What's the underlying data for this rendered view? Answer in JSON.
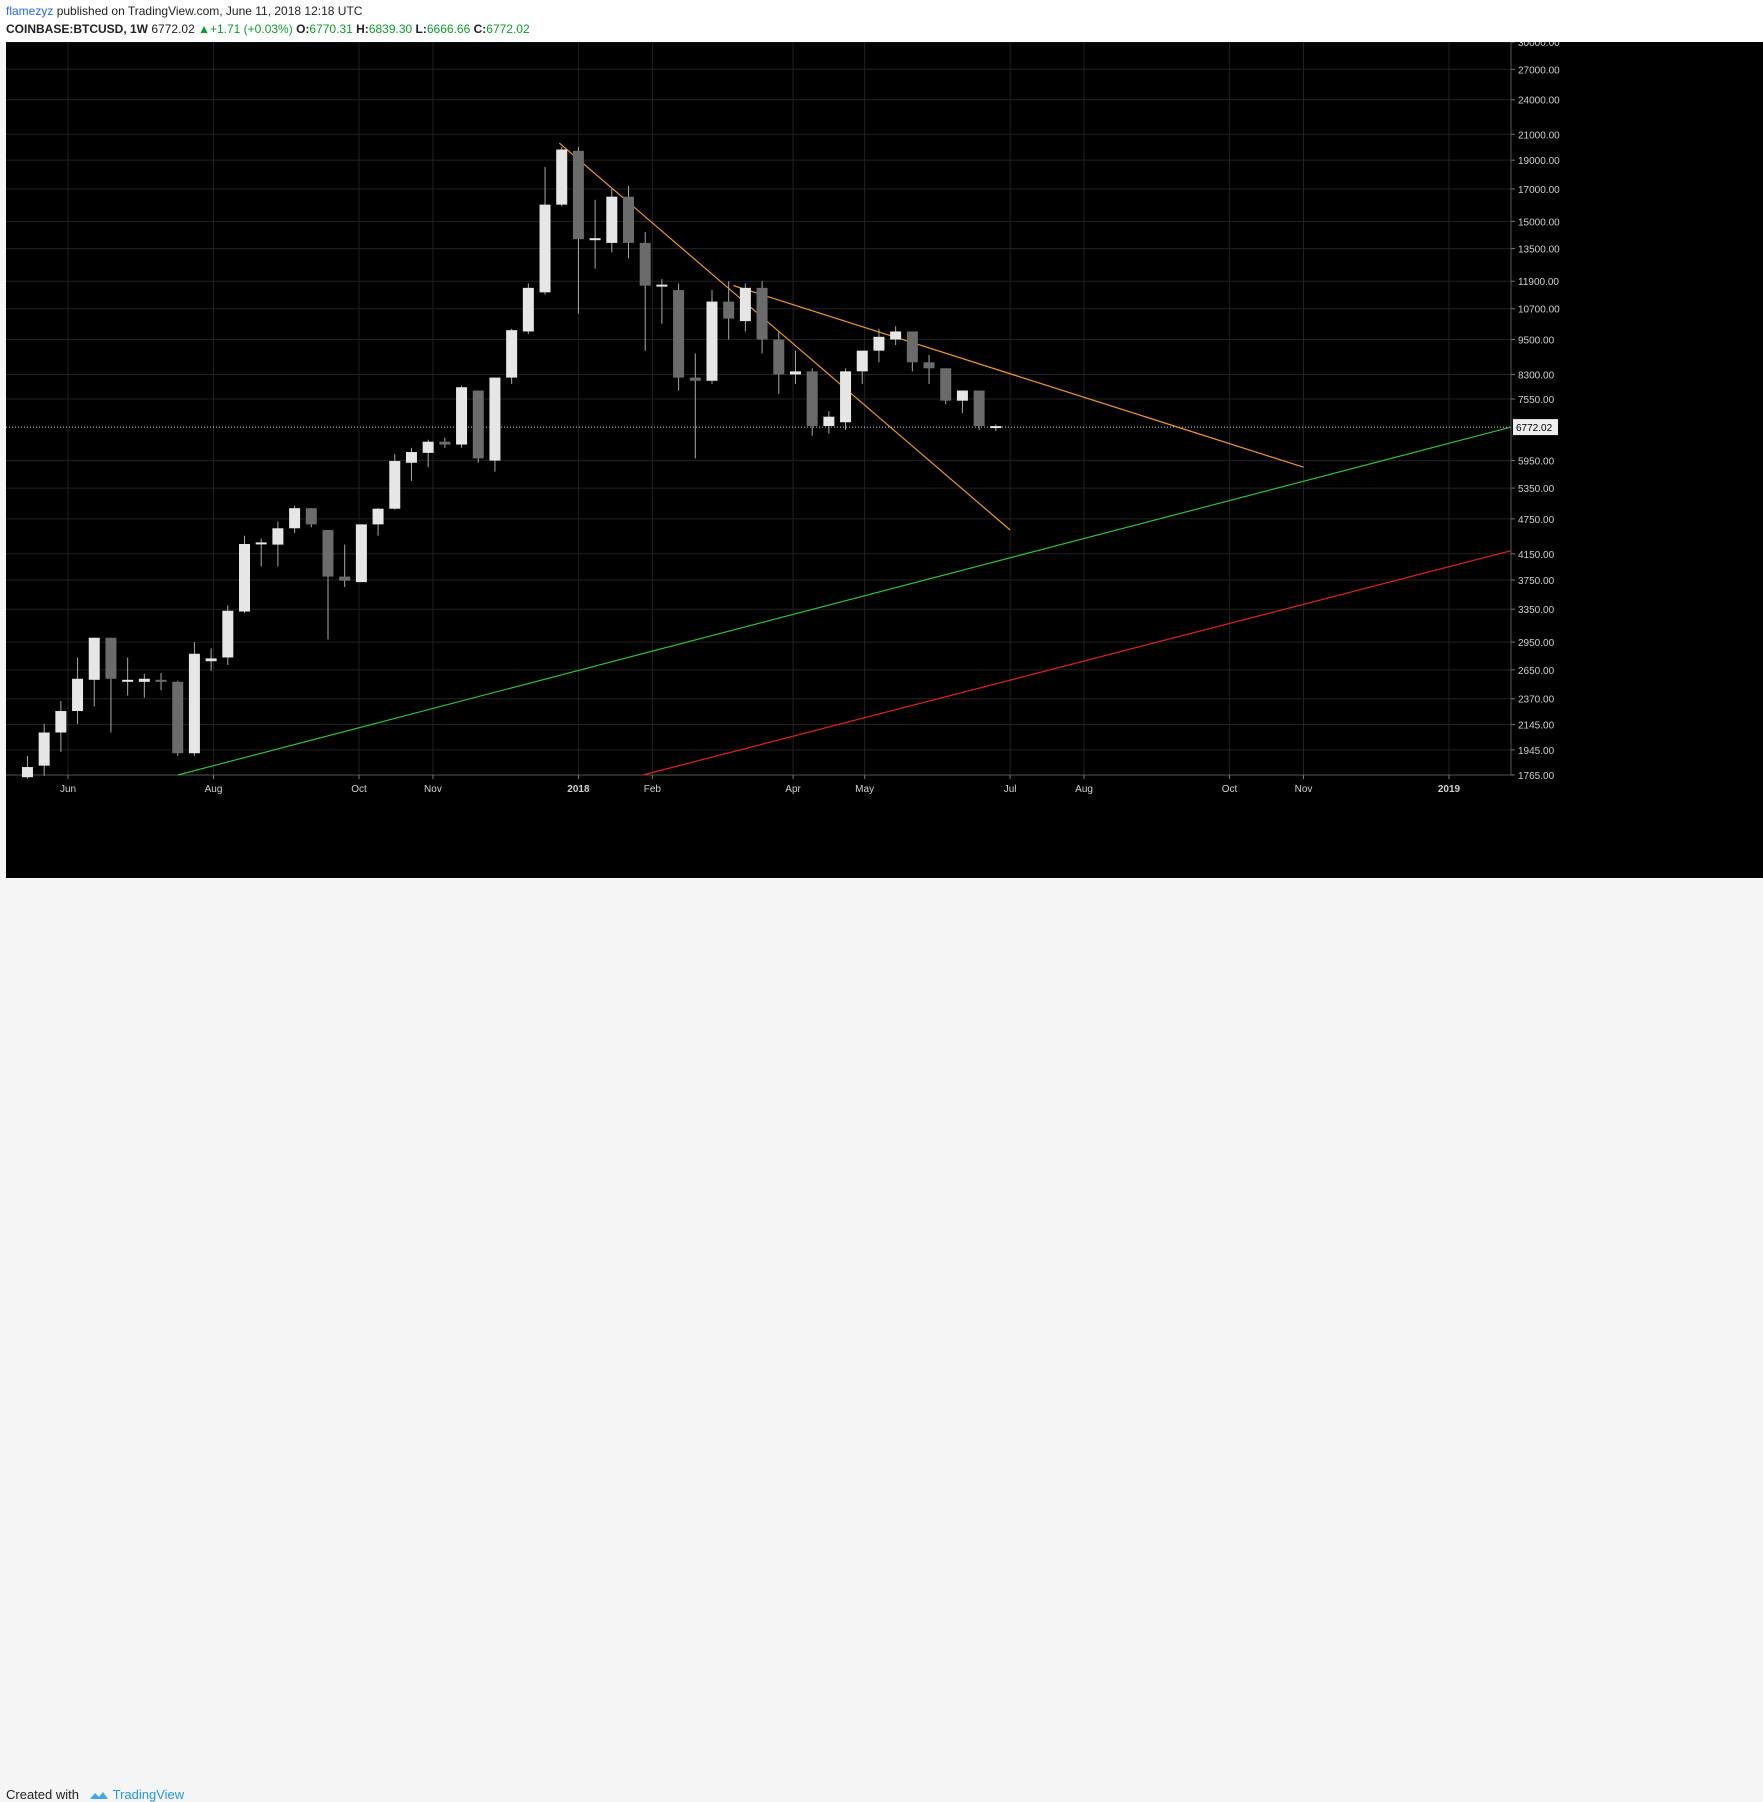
{
  "header": {
    "author": "flamezyz",
    "published_text": "published on TradingView.com, June 11, 2018 12:18 UTC",
    "symbol": "COINBASE:BTCUSD, 1W",
    "last": "6772.02",
    "change": "+1.71 (+0.03%)",
    "open_label": "O:",
    "open": "6770.31",
    "high_label": "H:",
    "high": "6839.30",
    "low_label": "L:",
    "low": "6666.66",
    "close_label": "C:",
    "close": "6772.02"
  },
  "footer": {
    "created_with": "Created with",
    "brand": "TradingView"
  },
  "chart_data": {
    "type": "candlestick",
    "title": "COINBASE:BTCUSD, 1W",
    "y_scale": "log",
    "ylim": [
      1765,
      30000
    ],
    "xlim": [
      "2017-05-06",
      "2019-01-27"
    ],
    "y_ticks": [
      {
        "value": 30000,
        "label": "30000.00"
      },
      {
        "value": 27000,
        "label": "27000.00"
      },
      {
        "value": 24000,
        "label": "24000.00"
      },
      {
        "value": 21000,
        "label": "21000.00"
      },
      {
        "value": 19000,
        "label": "19000.00"
      },
      {
        "value": 17000,
        "label": "17000.00"
      },
      {
        "value": 15000,
        "label": "15000.00"
      },
      {
        "value": 13500,
        "label": "13500.00"
      },
      {
        "value": 11900,
        "label": "11900.00"
      },
      {
        "value": 10700,
        "label": "10700.00"
      },
      {
        "value": 9500,
        "label": "9500.00"
      },
      {
        "value": 8300,
        "label": "8300.00"
      },
      {
        "value": 7550,
        "label": "7550.00"
      },
      {
        "value": 5950,
        "label": "5950.00"
      },
      {
        "value": 5350,
        "label": "5350.00"
      },
      {
        "value": 4750,
        "label": "4750.00"
      },
      {
        "value": 4150,
        "label": "4150.00"
      },
      {
        "value": 3750,
        "label": "3750.00"
      },
      {
        "value": 3350,
        "label": "3350.00"
      },
      {
        "value": 2950,
        "label": "2950.00"
      },
      {
        "value": 2650,
        "label": "2650.00"
      },
      {
        "value": 2370,
        "label": "2370.00"
      },
      {
        "value": 2145,
        "label": "2145.00"
      },
      {
        "value": 1945,
        "label": "1945.00"
      },
      {
        "value": 1765,
        "label": "1765.00"
      }
    ],
    "x_ticks": [
      {
        "date": "2017-06-01",
        "label": "Jun",
        "bold": false
      },
      {
        "date": "2017-08-01",
        "label": "Aug",
        "bold": false
      },
      {
        "date": "2017-10-01",
        "label": "Oct",
        "bold": false
      },
      {
        "date": "2017-11-01",
        "label": "Nov",
        "bold": false
      },
      {
        "date": "2018-01-01",
        "label": "2018",
        "bold": true
      },
      {
        "date": "2018-02-01",
        "label": "Feb",
        "bold": false
      },
      {
        "date": "2018-04-01",
        "label": "Apr",
        "bold": false
      },
      {
        "date": "2018-05-01",
        "label": "May",
        "bold": false
      },
      {
        "date": "2018-07-01",
        "label": "Jul",
        "bold": false
      },
      {
        "date": "2018-08-01",
        "label": "Aug",
        "bold": false
      },
      {
        "date": "2018-10-01",
        "label": "Oct",
        "bold": false
      },
      {
        "date": "2018-11-01",
        "label": "Nov",
        "bold": false
      },
      {
        "date": "2019-01-01",
        "label": "2019",
        "bold": true
      }
    ],
    "last_price": 6772.02,
    "last_price_label": "6772.02",
    "grid": true,
    "colors": {
      "up_fill": "#e6e6e6",
      "down_fill": "#6b6b6b",
      "wick": "#a8a8a8",
      "trend_orange": "#f0962d",
      "trend_green": "#2fbf3a",
      "trend_red": "#e02020",
      "background": "#000000",
      "grid": "#222222",
      "axis_text": "#d0d0d0"
    },
    "candles": [
      {
        "date": "2017-05-15",
        "open": 1750,
        "high": 1900,
        "low": 1740,
        "close": 1820
      },
      {
        "date": "2017-05-22",
        "open": 1830,
        "high": 2150,
        "low": 1760,
        "close": 2080
      },
      {
        "date": "2017-05-29",
        "open": 2080,
        "high": 2350,
        "low": 1930,
        "close": 2260
      },
      {
        "date": "2017-06-05",
        "open": 2260,
        "high": 2780,
        "low": 2150,
        "close": 2560
      },
      {
        "date": "2017-06-12",
        "open": 2550,
        "high": 3000,
        "low": 2300,
        "close": 3000
      },
      {
        "date": "2017-06-19",
        "open": 3000,
        "high": 3000,
        "low": 2080,
        "close": 2560
      },
      {
        "date": "2017-06-26",
        "open": 2540,
        "high": 2780,
        "low": 2400,
        "close": 2540
      },
      {
        "date": "2017-07-03",
        "open": 2530,
        "high": 2610,
        "low": 2380,
        "close": 2560
      },
      {
        "date": "2017-07-10",
        "open": 2550,
        "high": 2620,
        "low": 2450,
        "close": 2530
      },
      {
        "date": "2017-07-17",
        "open": 2530,
        "high": 2540,
        "low": 1900,
        "close": 1920
      },
      {
        "date": "2017-07-24",
        "open": 1920,
        "high": 2950,
        "low": 1900,
        "close": 2820
      },
      {
        "date": "2017-07-31",
        "open": 2740,
        "high": 2880,
        "low": 2640,
        "close": 2770
      },
      {
        "date": "2017-08-07",
        "open": 2780,
        "high": 3400,
        "low": 2700,
        "close": 3330
      },
      {
        "date": "2017-08-14",
        "open": 3320,
        "high": 4450,
        "low": 3300,
        "close": 4310
      },
      {
        "date": "2017-08-21",
        "open": 4300,
        "high": 4400,
        "low": 3950,
        "close": 4320
      },
      {
        "date": "2017-08-28",
        "open": 4300,
        "high": 4700,
        "low": 3950,
        "close": 4580
      },
      {
        "date": "2017-09-04",
        "open": 4580,
        "high": 5000,
        "low": 4500,
        "close": 4950
      },
      {
        "date": "2017-09-11",
        "open": 4950,
        "high": 4950,
        "low": 4600,
        "close": 4650
      },
      {
        "date": "2017-09-18",
        "open": 4550,
        "high": 4550,
        "low": 2980,
        "close": 3800
      },
      {
        "date": "2017-09-25",
        "open": 3800,
        "high": 4300,
        "low": 3650,
        "close": 3740
      },
      {
        "date": "2017-10-02",
        "open": 3720,
        "high": 4650,
        "low": 3720,
        "close": 4650
      },
      {
        "date": "2017-10-09",
        "open": 4650,
        "high": 4950,
        "low": 4450,
        "close": 4940
      },
      {
        "date": "2017-10-16",
        "open": 4940,
        "high": 6100,
        "low": 4920,
        "close": 5940
      },
      {
        "date": "2017-10-23",
        "open": 5900,
        "high": 6250,
        "low": 5500,
        "close": 6150
      },
      {
        "date": "2017-10-30",
        "open": 6130,
        "high": 6450,
        "low": 5800,
        "close": 6400
      },
      {
        "date": "2017-11-06",
        "open": 6400,
        "high": 6500,
        "low": 6250,
        "close": 6330
      },
      {
        "date": "2017-11-13",
        "open": 6330,
        "high": 7950,
        "low": 6250,
        "close": 7900
      },
      {
        "date": "2017-11-20",
        "open": 7800,
        "high": 7800,
        "low": 5900,
        "close": 6000
      },
      {
        "date": "2017-11-27",
        "open": 5950,
        "high": 8200,
        "low": 5700,
        "close": 8200
      },
      {
        "date": "2017-12-04",
        "open": 8200,
        "high": 9900,
        "low": 8000,
        "close": 9850
      },
      {
        "date": "2017-12-11",
        "open": 9800,
        "high": 11800,
        "low": 9700,
        "close": 11600
      },
      {
        "date": "2017-12-18",
        "open": 11400,
        "high": 18500,
        "low": 11300,
        "close": 16000
      },
      {
        "date": "2017-12-25",
        "open": 16000,
        "high": 20000,
        "low": 15900,
        "close": 19800
      },
      {
        "date": "2018-01-01",
        "open": 19700,
        "high": 20000,
        "low": 10500,
        "close": 14000
      },
      {
        "date": "2018-01-08",
        "open": 14000,
        "high": 16300,
        "low": 12500,
        "close": 14000
      },
      {
        "date": "2018-01-15",
        "open": 13800,
        "high": 17000,
        "low": 13300,
        "close": 16500
      },
      {
        "date": "2018-01-22",
        "open": 16500,
        "high": 17200,
        "low": 13000,
        "close": 13800
      },
      {
        "date": "2018-01-29",
        "open": 13800,
        "high": 14400,
        "low": 9100,
        "close": 11700
      },
      {
        "date": "2018-02-05",
        "open": 11700,
        "high": 12000,
        "low": 10100,
        "close": 11700
      },
      {
        "date": "2018-02-12",
        "open": 11500,
        "high": 11800,
        "low": 7800,
        "close": 8200
      },
      {
        "date": "2018-02-19",
        "open": 8200,
        "high": 9000,
        "low": 6000,
        "close": 8100
      },
      {
        "date": "2018-02-26",
        "open": 8100,
        "high": 11500,
        "low": 8000,
        "close": 11000
      },
      {
        "date": "2018-03-05",
        "open": 11000,
        "high": 11900,
        "low": 9500,
        "close": 10300
      },
      {
        "date": "2018-03-12",
        "open": 10200,
        "high": 11800,
        "low": 9800,
        "close": 11600
      },
      {
        "date": "2018-03-19",
        "open": 11600,
        "high": 11900,
        "low": 9000,
        "close": 9500
      },
      {
        "date": "2018-03-26",
        "open": 9500,
        "high": 9800,
        "low": 7700,
        "close": 8300
      },
      {
        "date": "2018-04-02",
        "open": 8300,
        "high": 9100,
        "low": 8000,
        "close": 8400
      },
      {
        "date": "2018-04-09",
        "open": 8400,
        "high": 8500,
        "low": 6550,
        "close": 6800
      },
      {
        "date": "2018-04-16",
        "open": 6800,
        "high": 7200,
        "low": 6600,
        "close": 7050
      },
      {
        "date": "2018-04-23",
        "open": 6900,
        "high": 8500,
        "low": 6700,
        "close": 8400
      },
      {
        "date": "2018-04-30",
        "open": 8400,
        "high": 9100,
        "low": 8000,
        "close": 9100
      },
      {
        "date": "2018-05-07",
        "open": 9100,
        "high": 9900,
        "low": 8700,
        "close": 9600
      },
      {
        "date": "2018-05-14",
        "open": 9500,
        "high": 10000,
        "low": 9300,
        "close": 9800
      },
      {
        "date": "2018-05-21",
        "open": 9800,
        "high": 9800,
        "low": 8400,
        "close": 8700
      },
      {
        "date": "2018-05-28",
        "open": 8700,
        "high": 8950,
        "low": 8000,
        "close": 8500
      },
      {
        "date": "2018-06-04",
        "open": 8500,
        "high": 8500,
        "low": 7400,
        "close": 7500
      },
      {
        "date": "2018-06-11",
        "open": 7500,
        "high": 7800,
        "low": 7150,
        "close": 7800
      },
      {
        "date": "2018-06-18",
        "open": 7800,
        "high": 7800,
        "low": 6700,
        "close": 6800
      },
      {
        "date": "2018-06-25",
        "open": 6770.31,
        "high": 6839.3,
        "low": 6666.66,
        "close": 6772.02
      }
    ],
    "trendlines": [
      {
        "color": "orange",
        "from": {
          "date": "2017-12-24",
          "value": 20300
        },
        "to": {
          "date": "2018-07-01",
          "value": 4550
        }
      },
      {
        "color": "orange",
        "from": {
          "date": "2018-03-07",
          "value": 11700
        },
        "to": {
          "date": "2018-11-01",
          "value": 5800
        }
      },
      {
        "color": "green",
        "from": {
          "date": "2017-07-17",
          "value": 1765
        },
        "to": {
          "date": "2019-01-27",
          "value": 6772
        }
      },
      {
        "color": "red",
        "from": {
          "date": "2018-01-28",
          "value": 1765
        },
        "to": {
          "date": "2019-01-27",
          "value": 4200
        }
      }
    ]
  }
}
